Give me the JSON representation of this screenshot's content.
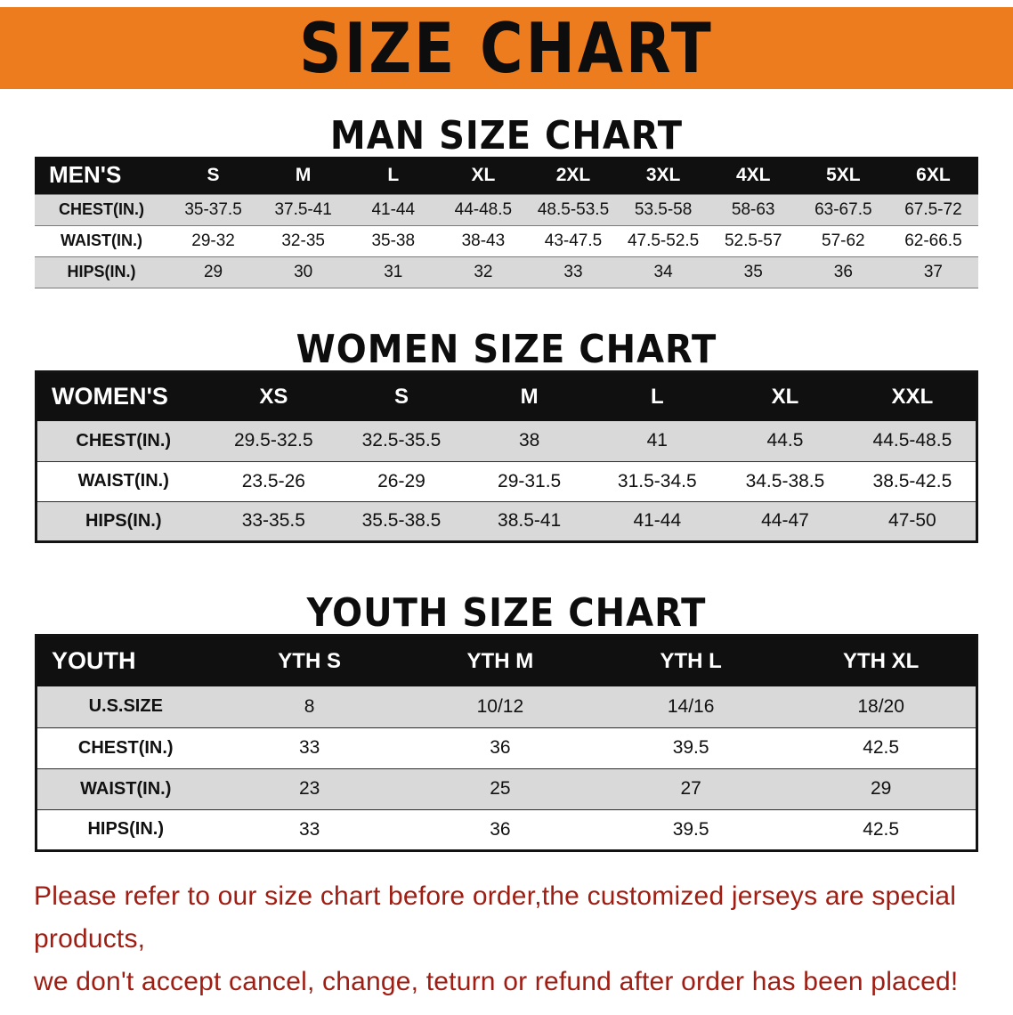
{
  "banner": {
    "title": "SIZE CHART"
  },
  "colors": {
    "banner_orange": "#ed7c1e",
    "table_header_black": "#101010",
    "stripe_gray": "#d9d9d9",
    "disclaimer_red": "#9f1d12"
  },
  "men": {
    "heading": "MAN SIZE CHART",
    "label": "MEN'S",
    "sizes": [
      "S",
      "M",
      "L",
      "XL",
      "2XL",
      "3XL",
      "4XL",
      "5XL",
      "6XL"
    ],
    "rows": [
      {
        "label": "CHEST(IN.)",
        "values": [
          "35-37.5",
          "37.5-41",
          "41-44",
          "44-48.5",
          "48.5-53.5",
          "53.5-58",
          "58-63",
          "63-67.5",
          "67.5-72"
        ]
      },
      {
        "label": "WAIST(IN.)",
        "values": [
          "29-32",
          "32-35",
          "35-38",
          "38-43",
          "43-47.5",
          "47.5-52.5",
          "52.5-57",
          "57-62",
          "62-66.5"
        ]
      },
      {
        "label": "HIPS(IN.)",
        "values": [
          "29",
          "30",
          "31",
          "32",
          "33",
          "34",
          "35",
          "36",
          "37"
        ]
      }
    ]
  },
  "women": {
    "heading": "WOMEN SIZE CHART",
    "label": "WOMEN'S",
    "sizes": [
      "XS",
      "S",
      "M",
      "L",
      "XL",
      "XXL"
    ],
    "rows": [
      {
        "label": "CHEST(IN.)",
        "values": [
          "29.5-32.5",
          "32.5-35.5",
          "38",
          "41",
          "44.5",
          "44.5-48.5"
        ]
      },
      {
        "label": "WAIST(IN.)",
        "values": [
          "23.5-26",
          "26-29",
          "29-31.5",
          "31.5-34.5",
          "34.5-38.5",
          "38.5-42.5"
        ]
      },
      {
        "label": "HIPS(IN.)",
        "values": [
          "33-35.5",
          "35.5-38.5",
          "38.5-41",
          "41-44",
          "44-47",
          "47-50"
        ]
      }
    ]
  },
  "youth": {
    "heading": "YOUTH SIZE CHART",
    "label": "YOUTH",
    "sizes": [
      "YTH S",
      "YTH M",
      "YTH L",
      "YTH XL"
    ],
    "rows": [
      {
        "label": "U.S.SIZE",
        "values": [
          "8",
          "10/12",
          "14/16",
          "18/20"
        ]
      },
      {
        "label": "CHEST(IN.)",
        "values": [
          "33",
          "36",
          "39.5",
          "42.5"
        ]
      },
      {
        "label": "WAIST(IN.)",
        "values": [
          "23",
          "25",
          "27",
          "29"
        ]
      },
      {
        "label": "HIPS(IN.)",
        "values": [
          "33",
          "36",
          "39.5",
          "42.5"
        ]
      }
    ]
  },
  "disclaimer": {
    "line1": "Please refer to our size chart before order,the customized jerseys are special products,",
    "line2": "we don't accept cancel, change, teturn or refund after order has been placed!"
  }
}
